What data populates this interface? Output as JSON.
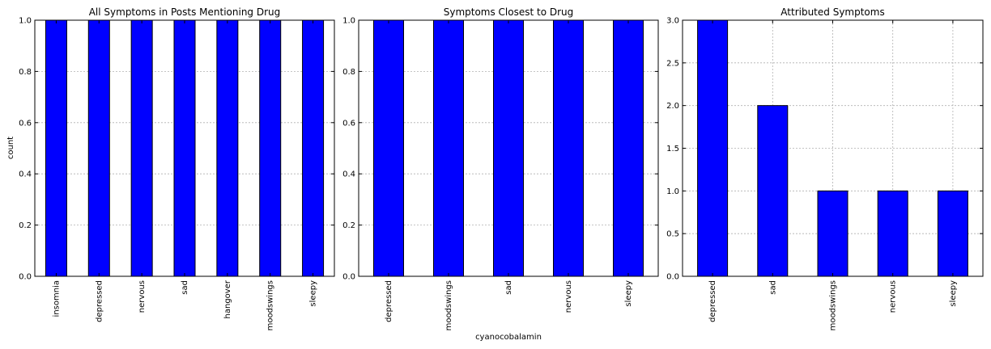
{
  "figure": {
    "shared_xlabel": "cyanocobalamin",
    "shared_ylabel": "count"
  },
  "chart_data": [
    {
      "type": "bar",
      "title": "All Symptoms in Posts Mentioning Drug",
      "ylabel": "count",
      "xlabel": "",
      "categories": [
        "insomnia",
        "depressed",
        "nervous",
        "sad",
        "hangover",
        "moodswings",
        "sleepy"
      ],
      "values": [
        1,
        1,
        1,
        1,
        1,
        1,
        1
      ],
      "ylim": [
        0,
        1.0
      ],
      "yticks": [
        "0.0",
        "0.2",
        "0.4",
        "0.6",
        "0.8",
        "1.0"
      ],
      "grid": true,
      "bar_color": "#0000ff"
    },
    {
      "type": "bar",
      "title": "Symptoms Closest to Drug",
      "ylabel": "",
      "xlabel": "cyanocobalamin",
      "categories": [
        "depressed",
        "moodswings",
        "sad",
        "nervous",
        "sleepy"
      ],
      "values": [
        1,
        1,
        1,
        1,
        1
      ],
      "ylim": [
        0,
        1.0
      ],
      "yticks": [
        "0.0",
        "0.2",
        "0.4",
        "0.6",
        "0.8",
        "1.0"
      ],
      "grid": true,
      "bar_color": "#0000ff"
    },
    {
      "type": "bar",
      "title": "Attributed Symptoms",
      "ylabel": "",
      "xlabel": "",
      "categories": [
        "depressed",
        "sad",
        "moodswings",
        "nervous",
        "sleepy"
      ],
      "values": [
        3,
        2,
        1,
        1,
        1
      ],
      "ylim": [
        0,
        3.0
      ],
      "yticks": [
        "0.0",
        "0.5",
        "1.0",
        "1.5",
        "2.0",
        "2.5",
        "3.0"
      ],
      "grid": true,
      "bar_color": "#0000ff"
    }
  ]
}
